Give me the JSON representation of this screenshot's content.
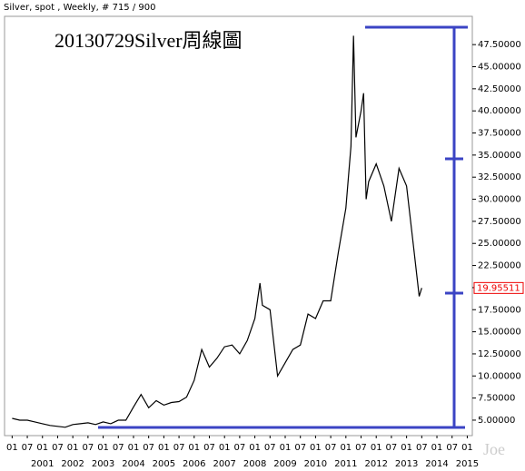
{
  "chart_data": {
    "type": "line",
    "header": "Silver, spot , Weekly, # 715 / 900",
    "title": "20130729Silver周線圖",
    "watermark": "Joe",
    "color": "#000000",
    "x": [
      "2000-01",
      "2000-04",
      "2000-07",
      "2000-10",
      "2001-01",
      "2001-04",
      "2001-07",
      "2001-10",
      "2002-01",
      "2002-04",
      "2002-07",
      "2002-10",
      "2003-01",
      "2003-04",
      "2003-07",
      "2003-10",
      "2004-01",
      "2004-04",
      "2004-07",
      "2004-10",
      "2005-01",
      "2005-04",
      "2005-07",
      "2005-10",
      "2006-01",
      "2006-04",
      "2006-07",
      "2006-10",
      "2007-01",
      "2007-04",
      "2007-07",
      "2007-10",
      "2008-01",
      "2008-03",
      "2008-04",
      "2008-07",
      "2008-10",
      "2009-01",
      "2009-04",
      "2009-07",
      "2009-10",
      "2010-01",
      "2010-04",
      "2010-07",
      "2010-10",
      "2011-01",
      "2011-03",
      "2011-04",
      "2011-05",
      "2011-07",
      "2011-08",
      "2011-09",
      "2011-10",
      "2012-01",
      "2012-04",
      "2012-07",
      "2012-10",
      "2013-01",
      "2013-04",
      "2013-06",
      "2013-07"
    ],
    "values": [
      5.2,
      5.0,
      5.0,
      4.8,
      4.6,
      4.4,
      4.3,
      4.2,
      4.5,
      4.6,
      4.7,
      4.5,
      4.8,
      4.6,
      5.0,
      5.0,
      6.5,
      7.9,
      6.4,
      7.2,
      6.7,
      7.0,
      7.1,
      7.6,
      9.5,
      13.0,
      11.0,
      12.0,
      13.3,
      13.5,
      12.5,
      14.0,
      16.5,
      20.5,
      18.0,
      17.5,
      10.0,
      11.5,
      13.0,
      13.5,
      17.0,
      16.5,
      18.5,
      18.5,
      24.0,
      29.0,
      36.0,
      48.5,
      37.0,
      40.0,
      42.0,
      30.0,
      32.0,
      34.0,
      31.5,
      27.5,
      33.5,
      31.5,
      24.0,
      19.0,
      19.95511
    ],
    "last_value": 19.95511,
    "ylim": [
      3.25,
      50.7
    ],
    "yticks": [
      {
        "value": 5,
        "label": "5.00000"
      },
      {
        "value": 7.5,
        "label": "7.50000"
      },
      {
        "value": 10,
        "label": "10.00000"
      },
      {
        "value": 12.5,
        "label": "12.50000"
      },
      {
        "value": 15,
        "label": "15.00000"
      },
      {
        "value": 17.5,
        "label": "17.50000"
      },
      {
        "value": 20,
        "label": "20.00000"
      },
      {
        "value": 22.5,
        "label": "22.50000"
      },
      {
        "value": 25,
        "label": "25.00000"
      },
      {
        "value": 27.5,
        "label": "27.50000"
      },
      {
        "value": 30,
        "label": "30.00000"
      },
      {
        "value": 32.5,
        "label": "32.50000"
      },
      {
        "value": 35,
        "label": "35.00000"
      },
      {
        "value": 37.5,
        "label": "37.50000"
      },
      {
        "value": 40,
        "label": "40.00000"
      },
      {
        "value": 42.5,
        "label": "42.50000"
      },
      {
        "value": 45,
        "label": "45.00000"
      },
      {
        "value": 47.5,
        "label": "47.50000"
      }
    ],
    "xlim": [
      "1999-10",
      "2015-03"
    ],
    "xticks": [
      {
        "value": "2000-01",
        "label": "01"
      },
      {
        "value": "2000-07",
        "label": "07"
      },
      {
        "value": "2001-01",
        "label": "01"
      },
      {
        "value": "2001-07",
        "label": "07"
      },
      {
        "value": "2002-01",
        "label": "01"
      },
      {
        "value": "2002-07",
        "label": "07"
      },
      {
        "value": "2003-01",
        "label": "01"
      },
      {
        "value": "2003-07",
        "label": "07"
      },
      {
        "value": "2004-01",
        "label": "01"
      },
      {
        "value": "2004-07",
        "label": "07"
      },
      {
        "value": "2005-01",
        "label": "01"
      },
      {
        "value": "2005-07",
        "label": "07"
      },
      {
        "value": "2006-01",
        "label": "01"
      },
      {
        "value": "2006-07",
        "label": "07"
      },
      {
        "value": "2007-01",
        "label": "01"
      },
      {
        "value": "2007-07",
        "label": "07"
      },
      {
        "value": "2008-01",
        "label": "01"
      },
      {
        "value": "2008-07",
        "label": "07"
      },
      {
        "value": "2009-01",
        "label": "01"
      },
      {
        "value": "2009-07",
        "label": "07"
      },
      {
        "value": "2010-01",
        "label": "01"
      },
      {
        "value": "2010-07",
        "label": "07"
      },
      {
        "value": "2011-01",
        "label": "01"
      },
      {
        "value": "2011-07",
        "label": "07"
      },
      {
        "value": "2012-01",
        "label": "01"
      },
      {
        "value": "2012-07",
        "label": "07"
      },
      {
        "value": "2013-01",
        "label": "01"
      },
      {
        "value": "2013-07",
        "label": "07"
      },
      {
        "value": "2014-01",
        "label": "01"
      },
      {
        "value": "2014-07",
        "label": "07"
      },
      {
        "value": "2015-01",
        "label": "01"
      }
    ],
    "x_year_labels": [
      {
        "value": "2001-01",
        "label": "2001"
      },
      {
        "value": "2002-01",
        "label": "2002"
      },
      {
        "value": "2003-01",
        "label": "2003"
      },
      {
        "value": "2004-01",
        "label": "2004"
      },
      {
        "value": "2005-01",
        "label": "2005"
      },
      {
        "value": "2006-01",
        "label": "2006"
      },
      {
        "value": "2007-01",
        "label": "2007"
      },
      {
        "value": "2008-01",
        "label": "2008"
      },
      {
        "value": "2009-01",
        "label": "2009"
      },
      {
        "value": "2010-01",
        "label": "2010"
      },
      {
        "value": "2011-01",
        "label": "2011"
      },
      {
        "value": "2012-01",
        "label": "2012"
      },
      {
        "value": "2013-01",
        "label": "2013"
      },
      {
        "value": "2014-01",
        "label": "2014"
      },
      {
        "value": "2015-01",
        "label": "2015"
      }
    ]
  }
}
